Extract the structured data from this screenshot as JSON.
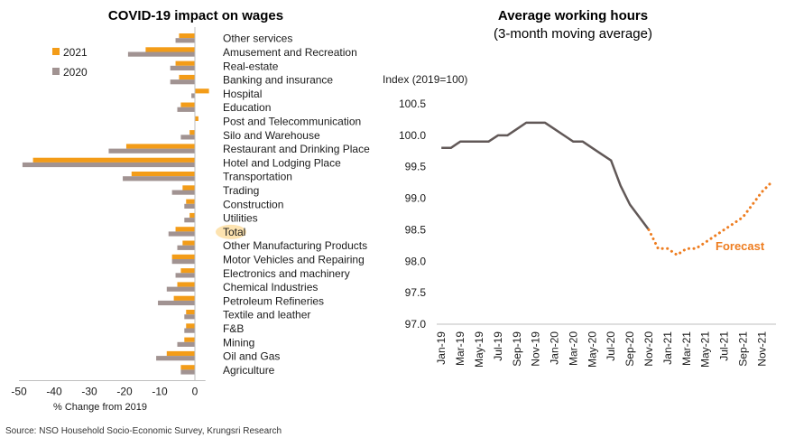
{
  "source": "Source: NSO Household Socio-Economic Survey, Krungsri Research",
  "colors": {
    "y2021": "#f39c18",
    "y2020": "#a19392",
    "line": "#615857",
    "forecast": "#ee7d20",
    "highlight": "#fde3b0"
  },
  "chart_data": [
    {
      "type": "bar",
      "orientation": "horizontal",
      "title": "COVID-19 impact on wages",
      "xlabel": "% Change from 2019",
      "xlim": [
        -50,
        5
      ],
      "xticks": [
        "-50",
        "-40",
        "-30",
        "-20",
        "-10",
        "0"
      ],
      "legend_position": "top-left",
      "highlighted_category": "Total",
      "categories": [
        "Other services",
        "Amusement and Recreation",
        "Real-estate",
        "Banking and insurance",
        "Hospital",
        "Education",
        "Post and Telecommunication",
        "Silo and Warehouse",
        "Restaurant and Drinking Place",
        "Hotel and Lodging Place",
        "Transportation",
        "Trading",
        "Construction",
        "Utilities",
        "Total",
        "Other Manufacturing Products",
        "Motor Vehicles and Repairing",
        "Electronics and machinery",
        "Chemical Industries",
        "Petroleum Refineries",
        "Textile and leather",
        "F&B",
        "Mining",
        "Oil and Gas",
        "Agriculture"
      ],
      "series": [
        {
          "name": "2021",
          "values": [
            -4.5,
            -14,
            -5.5,
            -4.5,
            4,
            -4,
            1,
            -1.5,
            -19.5,
            -46,
            -18,
            -3.5,
            -2.5,
            -1.5,
            -5.5,
            -3.5,
            -6.5,
            -4,
            -5,
            -6,
            -2.5,
            -2.5,
            -3,
            -8,
            -4
          ]
        },
        {
          "name": "2020",
          "values": [
            -5.5,
            -19,
            -7,
            -7,
            -1,
            -5,
            0,
            -4,
            -24.5,
            -49,
            -20.5,
            -6.5,
            -3,
            -3,
            -7.5,
            -5,
            -6.5,
            -5.5,
            -8,
            -10.5,
            -3,
            -3,
            -5,
            -11,
            -4
          ]
        }
      ]
    },
    {
      "type": "line",
      "title": "Average working hours",
      "subtitle": "(3-month moving average)",
      "ylabel": "Index (2019=100)",
      "ylim": [
        97.0,
        100.5
      ],
      "yticks": [
        "100.5",
        "100.0",
        "99.5",
        "99.0",
        "98.5",
        "98.0",
        "97.5",
        "97.0"
      ],
      "xtick_labels": [
        "Jan-19",
        "Mar-19",
        "May-19",
        "Jul-19",
        "Sep-19",
        "Nov-19",
        "Jan-20",
        "Mar-20",
        "May-20",
        "Jul-20",
        "Sep-20",
        "Nov-20",
        "Jan-21",
        "Mar-21",
        "May-21",
        "Jul-21",
        "Sep-21",
        "Nov-21"
      ],
      "annotation": "Forecast",
      "series": [
        {
          "style": "solid",
          "x": [
            "Jan-19",
            "Feb-19",
            "Mar-19",
            "Apr-19",
            "May-19",
            "Jun-19",
            "Jul-19",
            "Aug-19",
            "Sep-19",
            "Oct-19",
            "Nov-19",
            "Dec-19",
            "Jan-20",
            "Feb-20",
            "Mar-20",
            "Apr-20",
            "May-20",
            "Jun-20",
            "Jul-20",
            "Aug-20",
            "Sep-20",
            "Oct-20",
            "Nov-20"
          ],
          "values": [
            99.8,
            99.8,
            99.9,
            99.9,
            99.9,
            99.9,
            100.0,
            100.0,
            100.1,
            100.2,
            100.2,
            100.2,
            100.1,
            100.0,
            99.9,
            99.9,
            99.8,
            99.7,
            99.6,
            99.2,
            98.9,
            98.7,
            98.5
          ]
        },
        {
          "style": "dotted",
          "x": [
            "Nov-20",
            "Dec-20",
            "Jan-21",
            "Feb-21",
            "Mar-21",
            "Apr-21",
            "May-21",
            "Jun-21",
            "Jul-21",
            "Aug-21",
            "Sep-21",
            "Oct-21",
            "Nov-21",
            "Dec-21"
          ],
          "values": [
            98.5,
            98.2,
            98.2,
            98.1,
            98.2,
            98.2,
            98.3,
            98.4,
            98.5,
            98.6,
            98.7,
            98.9,
            99.1,
            99.25
          ]
        }
      ]
    }
  ]
}
